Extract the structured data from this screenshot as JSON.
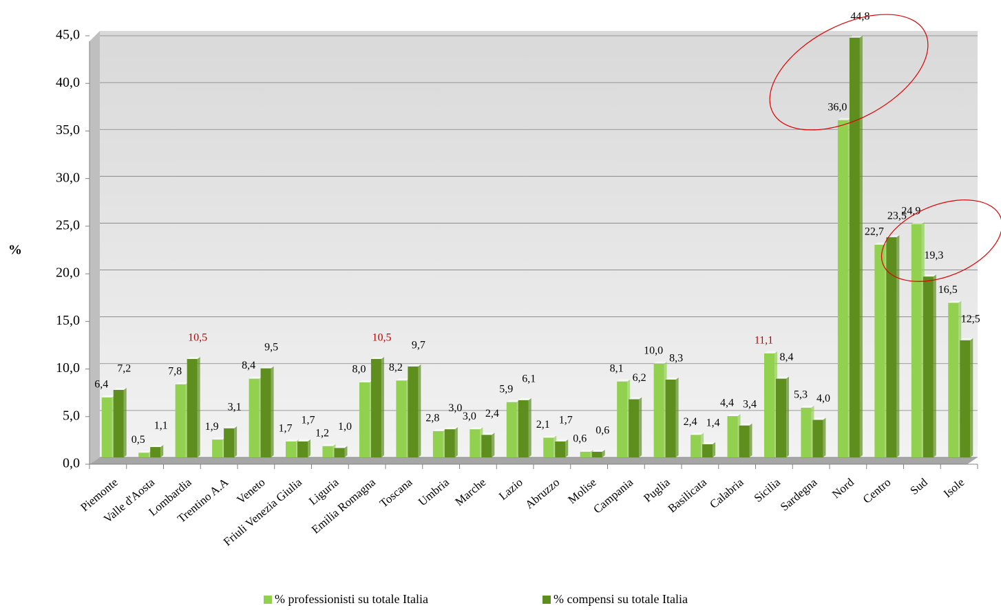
{
  "chart_data": {
    "type": "bar",
    "y_label": "%",
    "categories": [
      "Piemonte",
      "Valle d'Aosta",
      "Lombardia",
      "Trentino A.A",
      "Veneto",
      "Friuli Venezia Giulia",
      "Liguria",
      "Emilia Romagna",
      "Toscana",
      "Umbria",
      "Marche",
      "Lazio",
      "Abruzzo",
      "Molise",
      "Campania",
      "Puglia",
      "Basilicata",
      "Calabria",
      "Sicilia",
      "Sardegna",
      "Nord",
      "Centro",
      "Sud",
      "Isole"
    ],
    "series": [
      {
        "name": "% professionisti su totale Italia",
        "color": "#92d050",
        "values": [
          6.4,
          0.5,
          7.8,
          1.9,
          8.4,
          1.7,
          1.2,
          8.0,
          8.2,
          2.8,
          3.0,
          5.9,
          2.1,
          0.6,
          8.1,
          10.0,
          2.4,
          4.4,
          11.1,
          5.3,
          36.0,
          22.7,
          24.9,
          16.5
        ],
        "value_labels": [
          "6,4",
          "0,5",
          "7,8",
          "1,9",
          "8,4",
          "1,7",
          "1,2",
          "8,0",
          "8,2",
          "2,8",
          "3,0",
          "5,9",
          "2,1",
          "0,6",
          "8,1",
          "10,0",
          "2,4",
          "4,4",
          "11,1",
          "5,3",
          "36,0",
          "22,7",
          "24,9",
          "16,5"
        ],
        "label_colors": [
          "#000000",
          "#000000",
          "#000000",
          "#000000",
          "#000000",
          "#000000",
          "#000000",
          "#000000",
          "#000000",
          "#000000",
          "#000000",
          "#000000",
          "#000000",
          "#000000",
          "#000000",
          "#000000",
          "#000000",
          "#000000",
          "#c00000",
          "#000000",
          "#000000",
          "#000000",
          "#000000",
          "#000000"
        ]
      },
      {
        "name": "% compensi su totale Italia",
        "color": "#5e8f1e",
        "values": [
          7.2,
          1.1,
          10.5,
          3.1,
          9.5,
          1.7,
          1.0,
          10.5,
          9.7,
          3.0,
          2.4,
          6.1,
          1.7,
          0.6,
          6.2,
          8.3,
          1.4,
          3.4,
          8.4,
          4.0,
          44.8,
          23.5,
          19.3,
          12.5
        ],
        "value_labels": [
          "7,2",
          "1,1",
          "10,5",
          "3,1",
          "9,5",
          "1,7",
          "1,0",
          "10,5",
          "9,7",
          "3,0",
          "2,4",
          "6,1",
          "1,7",
          "0,6",
          "6,2",
          "8,3",
          "1,4",
          "3,4",
          "8,4",
          "4,0",
          "44,8",
          "23,5",
          "19,3",
          "12,5"
        ],
        "label_colors": [
          "#000000",
          "#000000",
          "#c00000",
          "#000000",
          "#000000",
          "#000000",
          "#000000",
          "#c00000",
          "#000000",
          "#000000",
          "#000000",
          "#000000",
          "#000000",
          "#000000",
          "#000000",
          "#000000",
          "#000000",
          "#000000",
          "#000000",
          "#000000",
          "#000000",
          "#000000",
          "#000000",
          "#000000"
        ]
      }
    ],
    "ylim": [
      0,
      45
    ],
    "yticks": [
      {
        "value": 0,
        "label": "0,0"
      },
      {
        "value": 5,
        "label": "5,0"
      },
      {
        "value": 10,
        "label": "10,0"
      },
      {
        "value": 15,
        "label": "15,0"
      },
      {
        "value": 20,
        "label": "20,0"
      },
      {
        "value": 25,
        "label": "25,0"
      },
      {
        "value": 30,
        "label": "30,0"
      },
      {
        "value": 35,
        "label": "35,0"
      },
      {
        "value": 40,
        "label": "40,0"
      },
      {
        "value": 45,
        "label": "45,0"
      }
    ],
    "grid": true,
    "legend": "bottom"
  }
}
